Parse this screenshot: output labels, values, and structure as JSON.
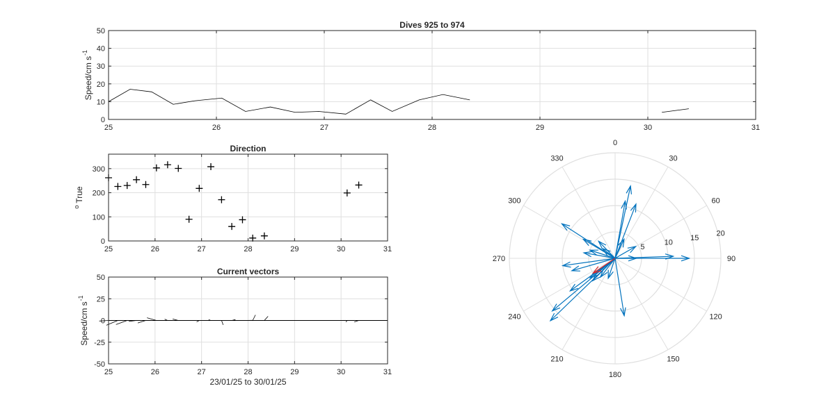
{
  "colors": {
    "axis": "#262626",
    "grid": "#dfdfdf",
    "line": "#000000",
    "vector": "#0072bd",
    "mean_vector": "#d62728"
  },
  "chart_data": [
    {
      "id": "speed",
      "type": "line",
      "title": "Dives 925 to 974",
      "xlabel": "",
      "ylabel": "Speed/cm s",
      "ylabel_sup": "-1",
      "xlim": [
        25,
        31
      ],
      "ylim": [
        0,
        50
      ],
      "xticks": [
        25,
        26,
        27,
        28,
        29,
        30,
        31
      ],
      "yticks": [
        0,
        10,
        20,
        30,
        40,
        50
      ],
      "grid": true,
      "segments": [
        {
          "x": [
            25.0,
            25.2,
            25.4,
            25.6,
            25.8,
            26.05,
            26.27,
            26.5,
            26.73,
            26.95,
            27.2,
            27.43,
            27.63,
            27.88,
            28.1,
            28.35
          ],
          "y": [
            10,
            17,
            15.5,
            8.5,
            10.5,
            12,
            4.5,
            7,
            4,
            4.5,
            3,
            11,
            4.5,
            11,
            14,
            11
          ]
        },
        {
          "x": [
            30.13,
            30.38
          ],
          "y": [
            4,
            6
          ]
        }
      ]
    },
    {
      "id": "direction",
      "type": "scatter",
      "title": "Direction",
      "xlabel": "",
      "ylabel": "True",
      "ylabel_sup": "o",
      "xlim": [
        25,
        31
      ],
      "ylim": [
        0,
        360
      ],
      "xticks": [
        25,
        26,
        27,
        28,
        29,
        30,
        31
      ],
      "yticks": [
        0,
        100,
        200,
        300
      ],
      "grid": true,
      "x": [
        25.0,
        25.2,
        25.4,
        25.6,
        25.8,
        26.03,
        26.27,
        26.5,
        26.73,
        26.95,
        27.2,
        27.43,
        27.65,
        27.88,
        28.1,
        28.35,
        30.13,
        30.38
      ],
      "y": [
        262,
        226,
        230,
        254,
        234,
        303,
        316,
        301,
        90,
        218,
        308,
        171,
        60,
        88,
        12,
        21,
        199,
        232
      ]
    },
    {
      "id": "vectors",
      "type": "quiver",
      "title": "Current vectors",
      "xlabel": "23/01/25 to 30/01/25",
      "ylabel": "Speed/cm s",
      "ylabel_sup": "-1",
      "xlim": [
        25,
        31
      ],
      "ylim": [
        -50,
        50
      ],
      "xticks": [
        25,
        26,
        27,
        28,
        29,
        30,
        31
      ],
      "yticks": [
        -50,
        -25,
        0,
        25,
        50
      ],
      "grid": true,
      "x": [
        25.0,
        25.2,
        25.4,
        25.6,
        25.8,
        26.03,
        26.27,
        26.5,
        26.73,
        26.95,
        27.2,
        27.43,
        27.65,
        27.88,
        28.1,
        28.35,
        30.13,
        30.38
      ],
      "speed": [
        10,
        17,
        15.5,
        8.5,
        10.5,
        12,
        4.5,
        7,
        4,
        4.5,
        3,
        11,
        4.5,
        11,
        14,
        11,
        4,
        6
      ],
      "direction": [
        262,
        226,
        230,
        254,
        234,
        303,
        316,
        301,
        90,
        218,
        308,
        171,
        60,
        88,
        12,
        21,
        199,
        232
      ]
    },
    {
      "id": "polar",
      "type": "compass",
      "rticks": [
        5,
        10,
        15,
        20
      ],
      "rlim": [
        0,
        20
      ],
      "theta_ticks": [
        0,
        30,
        60,
        90,
        120,
        150,
        180,
        210,
        240,
        270,
        300,
        330
      ],
      "theta_zero": "top",
      "theta_direction": "clockwise",
      "vectors_direction": [
        262,
        226,
        230,
        254,
        234,
        303,
        316,
        301,
        90,
        218,
        308,
        171,
        60,
        88,
        12,
        21,
        199,
        232,
        10,
        25,
        288,
        225,
        90,
        280
      ],
      "vectors_speed": [
        10,
        17,
        15.5,
        8.5,
        10.5,
        12,
        4.5,
        7,
        4,
        4.5,
        3,
        11,
        4.5,
        11,
        14,
        11,
        4,
        6,
        11,
        4,
        5,
        6,
        14,
        6
      ],
      "mean_direction": 236,
      "mean_speed": 5
    }
  ]
}
